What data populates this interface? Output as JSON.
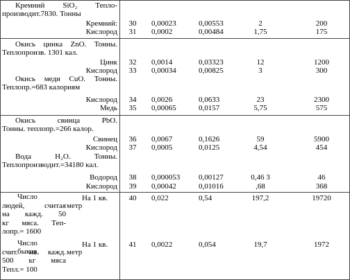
{
  "groups": [
    {
      "sections": [
        {
          "heading": [
            "Кремний SiO₂ Тепло-",
            "производит.7830. Тонны"
          ],
          "rows": [
            {
              "name": "Кремний:",
              "cells": [
                "30",
                "0,00023",
                "0,00553",
                "2",
                "200"
              ]
            },
            {
              "name": "Кислород",
              "cells": [
                "31",
                "0,0002",
                "0,00484",
                "1,75",
                "175"
              ]
            }
          ]
        }
      ]
    },
    {
      "sections": [
        {
          "heading": [
            "Окись цинка ZnO. Тонны.",
            "Теплопроизв. 1301 кал."
          ],
          "rows": [
            {
              "name": "Цинк",
              "cells": [
                "32",
                "0,0014",
                "0,03323",
                "12",
                "1200"
              ]
            },
            {
              "name": "Кислород",
              "cells": [
                "33",
                "0,00034",
                "0,00825",
                "3",
                "300"
              ]
            }
          ]
        },
        {
          "heading": [
            "Окись меди CuO. Тонны.",
            "Теплопр.=683 калориям"
          ],
          "rows": [
            {
              "name": "Кислород",
              "cells": [
                "34",
                "0,0026",
                "0,0633",
                "23",
                "2300"
              ]
            },
            {
              "name": "Медь",
              "cells": [
                "35",
                "0,00065",
                "0,0157",
                "5,75",
                "575"
              ]
            }
          ]
        }
      ]
    },
    {
      "sections": [
        {
          "heading": [
            "Окись свинца PbO.",
            "Тонны. теплопр.=266 калор."
          ],
          "rows": [
            {
              "name": "Свинец",
              "cells": [
                "36",
                "0,0067",
                "0,1626",
                "59",
                "5900"
              ]
            },
            {
              "name": "Кислород",
              "cells": [
                "37",
                "0,0005",
                "0,0125",
                "4,54",
                "454"
              ]
            }
          ]
        },
        {
          "heading": [
            "Вода H₂O. Тонны.",
            "Теплопроизводит.=34180 кал."
          ],
          "rows": [
            {
              "name": "Водород",
              "cells": [
                "38",
                "0,000053",
                "0,00127",
                "0,46 3",
                "46"
              ]
            },
            {
              "name": "Кислород",
              "cells": [
                "39",
                "0,00042",
                "0,01016",
                ",68",
                "368"
              ]
            }
          ]
        }
      ]
    },
    {
      "sections": [
        {
          "heading": [
            "Число",
            "людей, считая",
            "на кажд. 50",
            "кг мяса. Теп-",
            "лопр.= 1600"
          ],
          "rows": [
            {
              "name": "На 1 кв.",
              "unit": "метр",
              "cells": [
                "40",
                "0,022",
                "0,54",
                "197,2",
                "19720"
              ]
            }
          ]
        },
        {
          "heading": [
            "Число быков,",
            "счит. на кажд.",
            "500 кг мяса",
            "Тепл.= 100"
          ],
          "rows": [
            {
              "name": "На 1 кв.",
              "unit": "метр",
              "cells": [
                "41",
                "0,0022",
                "0,054",
                "19,7",
                "1972"
              ]
            }
          ]
        }
      ]
    }
  ]
}
